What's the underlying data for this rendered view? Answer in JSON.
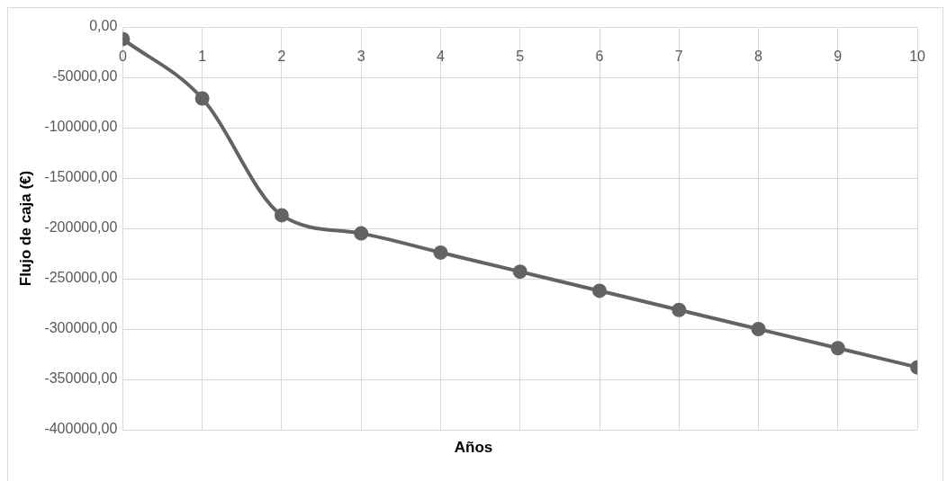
{
  "chart_data": {
    "type": "line",
    "xlabel": "Años",
    "ylabel": "Flujo de caja (€)",
    "x": [
      0,
      1,
      2,
      3,
      4,
      5,
      6,
      7,
      8,
      9,
      10
    ],
    "series": [
      {
        "color": "#636363",
        "values": [
          -12000,
          -71000,
          -187000,
          -205000,
          -224000,
          -243000,
          -262000,
          -281000,
          -300000,
          -319000,
          -338000
        ]
      }
    ],
    "xlim": [
      0,
      10
    ],
    "xticks": [
      0,
      1,
      2,
      3,
      4,
      5,
      6,
      7,
      8,
      9,
      10
    ],
    "ylim": [
      -400000,
      0
    ],
    "yticks": [
      {
        "value": 0,
        "label": "0,00"
      },
      {
        "value": -50000,
        "label": "-50000,00"
      },
      {
        "value": -100000,
        "label": "-100000,00"
      },
      {
        "value": -150000,
        "label": "-150000,00"
      },
      {
        "value": -200000,
        "label": "-200000,00"
      },
      {
        "value": -250000,
        "label": "-250000,00"
      },
      {
        "value": -300000,
        "label": "-300000,00"
      },
      {
        "value": -350000,
        "label": "-350000,00"
      },
      {
        "value": -400000,
        "label": "-400000,00"
      }
    ],
    "grid": true,
    "legend": false,
    "marker": "circle",
    "line_style": "solid"
  }
}
